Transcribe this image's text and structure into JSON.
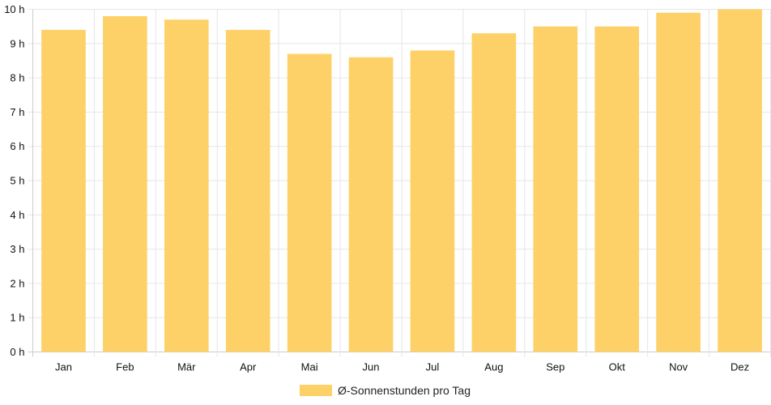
{
  "chart_data": {
    "type": "bar",
    "categories": [
      "Jan",
      "Feb",
      "Mär",
      "Apr",
      "Mai",
      "Jun",
      "Jul",
      "Aug",
      "Sep",
      "Okt",
      "Nov",
      "Dez"
    ],
    "series": [
      {
        "name": "Ø-Sonnenstunden pro Tag",
        "values": [
          9.4,
          9.8,
          9.7,
          9.4,
          8.7,
          8.6,
          8.8,
          9.3,
          9.5,
          9.5,
          9.9,
          10.0
        ],
        "color": "#fdd168"
      }
    ],
    "y_ticks": [
      "0 h",
      "1 h",
      "2 h",
      "3 h",
      "4 h",
      "5 h",
      "6 h",
      "7 h",
      "8 h",
      "9 h",
      "10 h"
    ],
    "ylim": [
      0,
      10
    ],
    "grid": true,
    "legend_position": "bottom"
  }
}
